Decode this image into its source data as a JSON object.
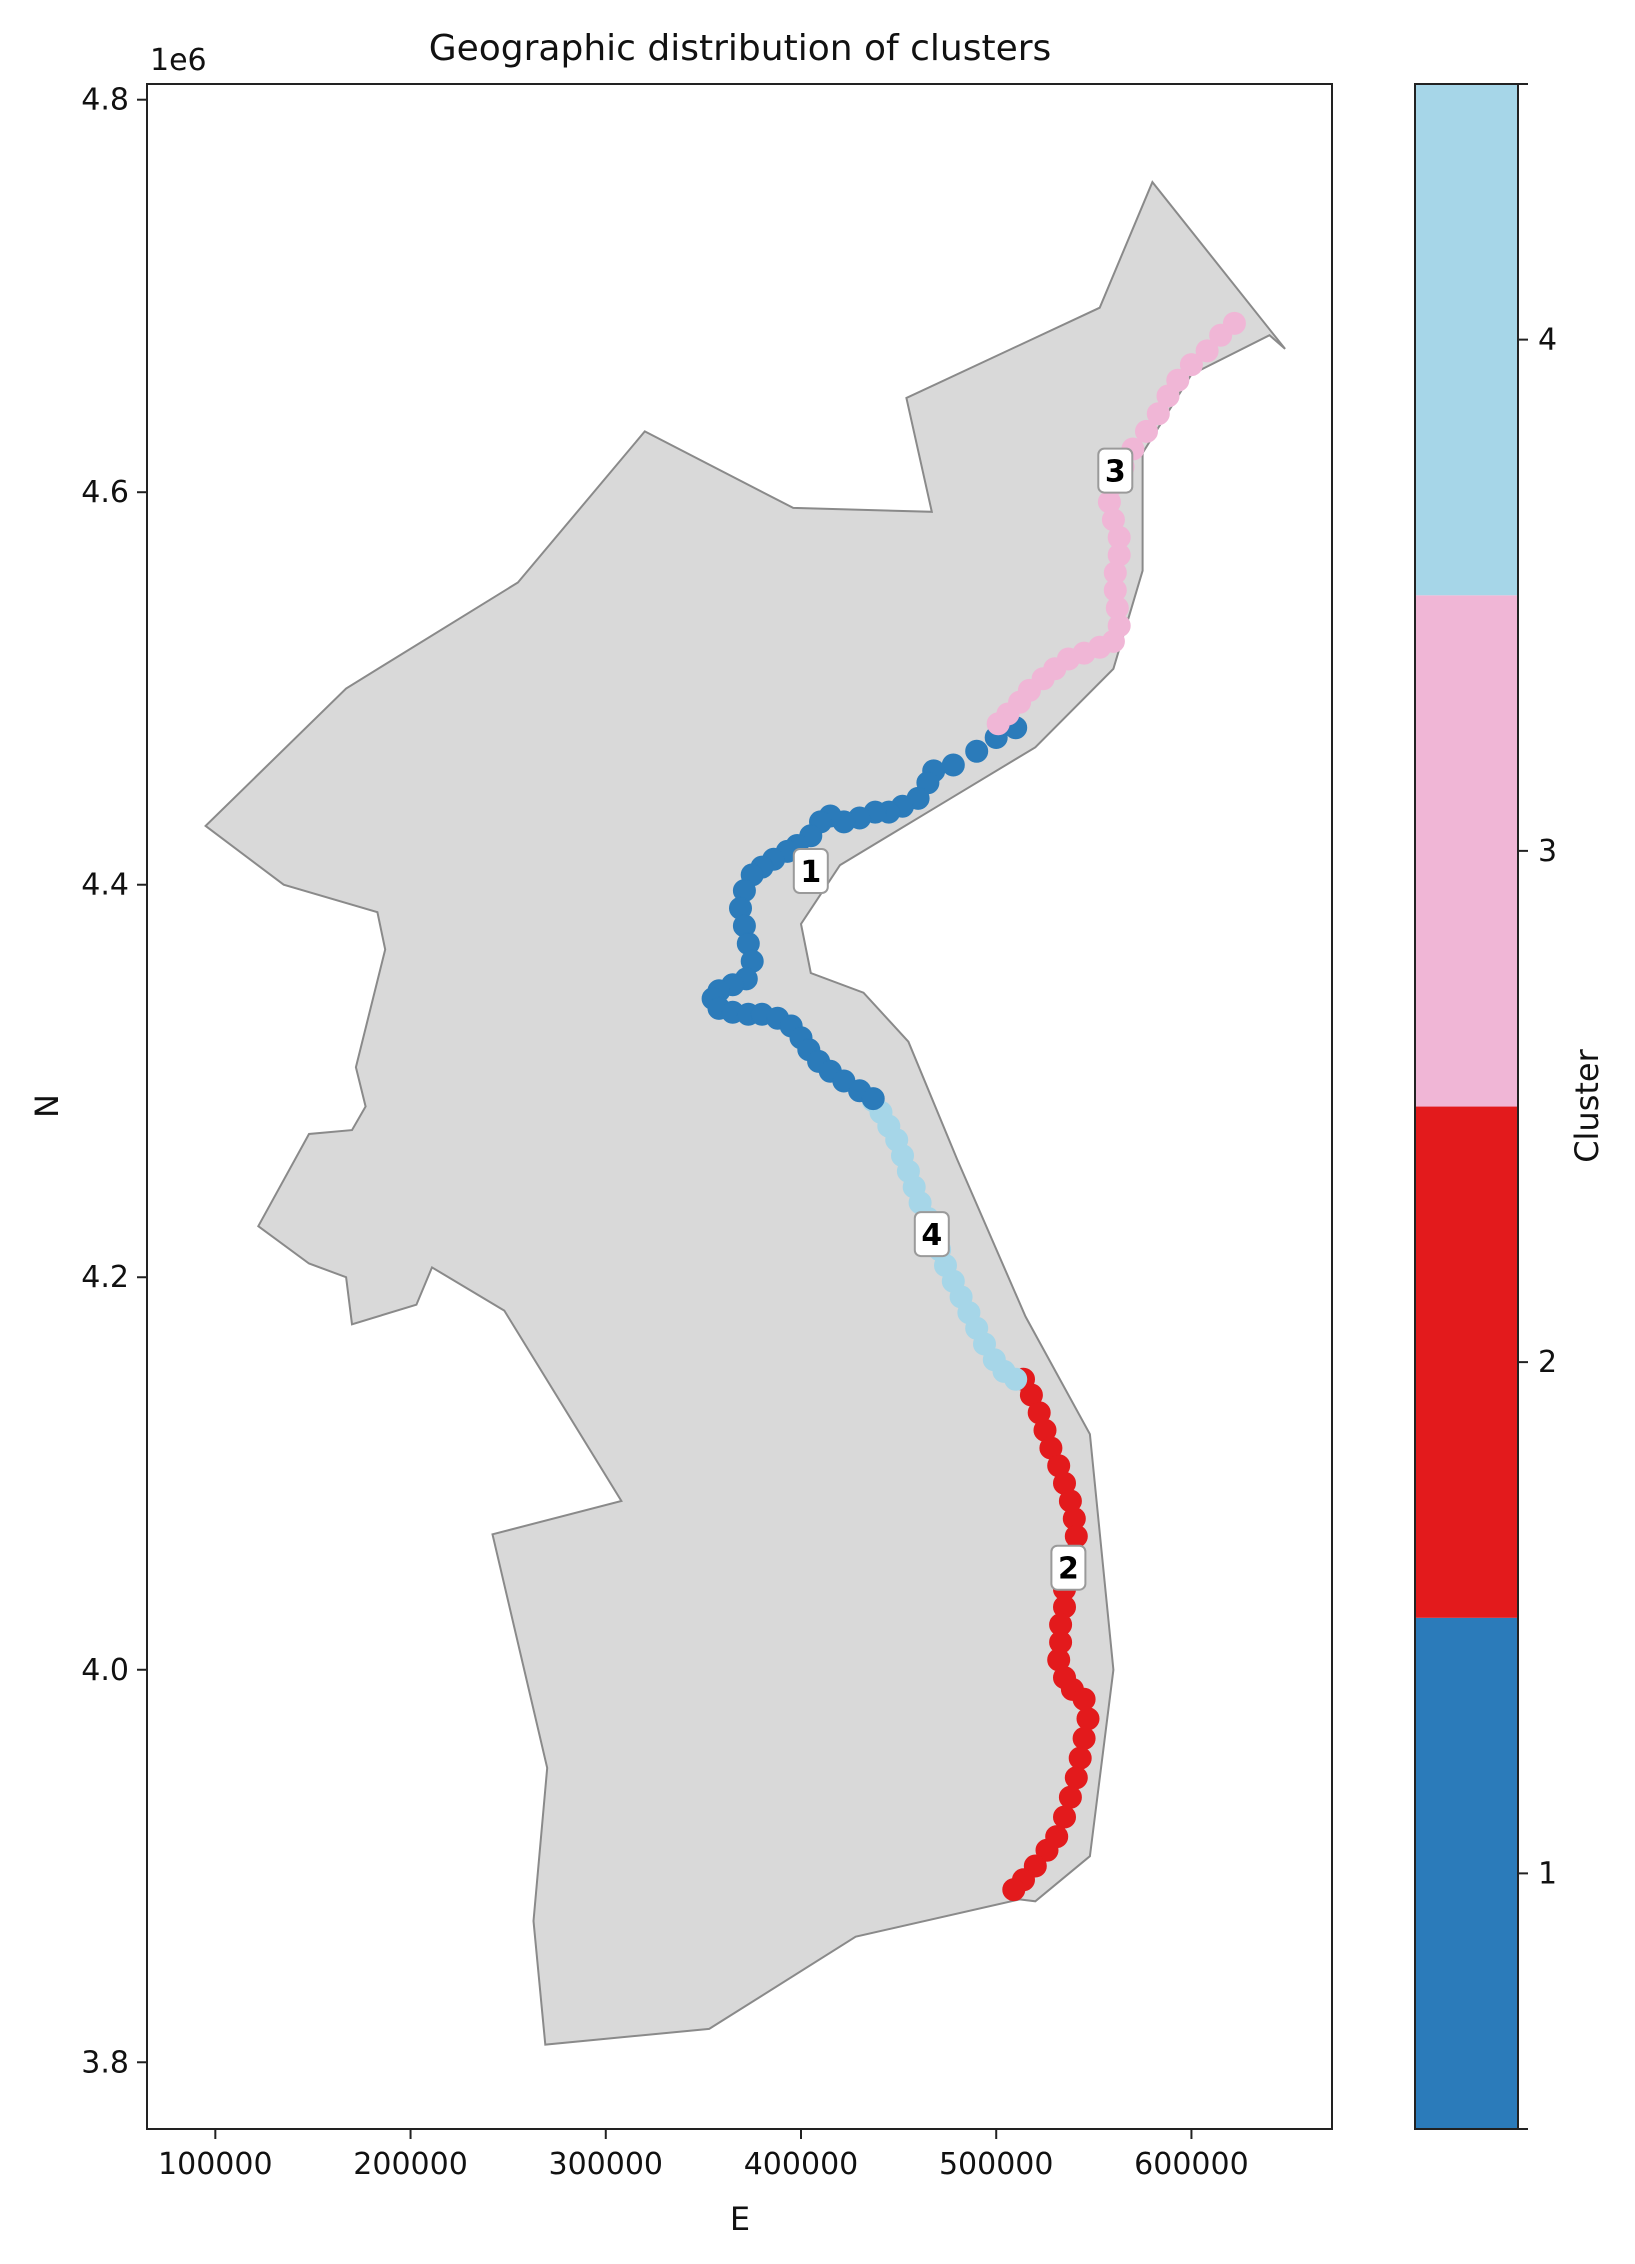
{
  "chart_data": {
    "type": "scatter",
    "title": "Geographic distribution of clusters",
    "xlabel": "E",
    "ylabel": "N",
    "y_offset_text": "1e6",
    "xlim": [
      65000,
      672000
    ],
    "ylim": [
      3766000,
      4808000
    ],
    "x_ticks": [
      100000,
      200000,
      300000,
      400000,
      500000,
      600000
    ],
    "x_tick_labels": [
      "100000",
      "200000",
      "300000",
      "400000",
      "500000",
      "600000"
    ],
    "y_ticks": [
      3800000,
      4000000,
      4200000,
      4400000,
      4600000,
      4800000
    ],
    "y_tick_labels": [
      "3.8",
      "4.0",
      "4.2",
      "4.4",
      "4.6",
      "4.8"
    ],
    "grid": false,
    "region_color": "#d9d9d9",
    "region_outline": [
      [
        95000,
        4430000
      ],
      [
        135000,
        4400000
      ],
      [
        183000,
        4386000
      ],
      [
        187000,
        4367000
      ],
      [
        172000,
        4307000
      ],
      [
        177000,
        4287000
      ],
      [
        170000,
        4275000
      ],
      [
        148000,
        4273000
      ],
      [
        122000,
        4226000
      ],
      [
        148000,
        4207000
      ],
      [
        167000,
        4200000
      ],
      [
        170000,
        4176000
      ],
      [
        203000,
        4186000
      ],
      [
        211000,
        4205000
      ],
      [
        248000,
        4183000
      ],
      [
        308000,
        4086000
      ],
      [
        242000,
        4069000
      ],
      [
        270000,
        3950000
      ],
      [
        263000,
        3872000
      ],
      [
        269000,
        3809000
      ],
      [
        353000,
        3817000
      ],
      [
        428000,
        3864000
      ],
      [
        512000,
        3883000
      ],
      [
        520000,
        3882000
      ],
      [
        548000,
        3905000
      ],
      [
        560000,
        4000000
      ],
      [
        548000,
        4120000
      ],
      [
        515000,
        4180000
      ],
      [
        480000,
        4260000
      ],
      [
        455000,
        4320000
      ],
      [
        432000,
        4345000
      ],
      [
        405000,
        4355000
      ],
      [
        400000,
        4380000
      ],
      [
        420000,
        4410000
      ],
      [
        470000,
        4440000
      ],
      [
        520000,
        4470000
      ],
      [
        560000,
        4510000
      ],
      [
        575000,
        4560000
      ],
      [
        575000,
        4620000
      ],
      [
        600000,
        4660000
      ],
      [
        640000,
        4680000
      ],
      [
        648000,
        4673000
      ],
      [
        580000,
        4758000
      ],
      [
        553000,
        4694000
      ],
      [
        454000,
        4648000
      ],
      [
        467000,
        4590000
      ],
      [
        396000,
        4592000
      ],
      [
        320000,
        4631000
      ],
      [
        255000,
        4554000
      ],
      [
        167000,
        4500000
      ]
    ],
    "series": [
      {
        "cluster": 1,
        "color": "#2b7bba",
        "label_point": [
          405000,
          4407000
        ],
        "points": [
          [
            510000,
            4480000
          ],
          [
            500000,
            4475000
          ],
          [
            490000,
            4468000
          ],
          [
            478000,
            4461000
          ],
          [
            468000,
            4458000
          ],
          [
            465000,
            4452000
          ],
          [
            460000,
            4444000
          ],
          [
            452000,
            4440000
          ],
          [
            445000,
            4437000
          ],
          [
            438000,
            4437000
          ],
          [
            430000,
            4434000
          ],
          [
            422000,
            4432000
          ],
          [
            415000,
            4435000
          ],
          [
            410000,
            4432000
          ],
          [
            405000,
            4425000
          ],
          [
            398000,
            4420000
          ],
          [
            393000,
            4417000
          ],
          [
            386000,
            4413000
          ],
          [
            380000,
            4409000
          ],
          [
            375000,
            4405000
          ],
          [
            371000,
            4397000
          ],
          [
            369000,
            4388000
          ],
          [
            371000,
            4379000
          ],
          [
            373000,
            4370000
          ],
          [
            375000,
            4361000
          ],
          [
            372000,
            4352000
          ],
          [
            365000,
            4349000
          ],
          [
            358000,
            4346000
          ],
          [
            355000,
            4342000
          ],
          [
            358000,
            4337000
          ],
          [
            365000,
            4335000
          ],
          [
            373000,
            4334000
          ],
          [
            380000,
            4334000
          ],
          [
            388000,
            4332000
          ],
          [
            395000,
            4328000
          ],
          [
            400000,
            4322000
          ],
          [
            404000,
            4316000
          ],
          [
            409000,
            4310000
          ],
          [
            415000,
            4305000
          ],
          [
            422000,
            4300000
          ],
          [
            430000,
            4295000
          ],
          [
            437000,
            4291000
          ]
        ]
      },
      {
        "cluster": 2,
        "color": "#e31a1c",
        "label_point": [
          537000,
          4052000
        ],
        "points": [
          [
            514000,
            4148000
          ],
          [
            518000,
            4140000
          ],
          [
            522000,
            4131000
          ],
          [
            525000,
            4122000
          ],
          [
            528000,
            4113000
          ],
          [
            532000,
            4104000
          ],
          [
            535000,
            4095000
          ],
          [
            538000,
            4086000
          ],
          [
            540000,
            4077000
          ],
          [
            541000,
            4068000
          ],
          [
            540000,
            4059000
          ],
          [
            537000,
            4050000
          ],
          [
            535000,
            4041000
          ],
          [
            535000,
            4032000
          ],
          [
            533000,
            4023000
          ],
          [
            533000,
            4014000
          ],
          [
            532000,
            4005000
          ],
          [
            535000,
            3996000
          ],
          [
            539000,
            3990000
          ],
          [
            545000,
            3985000
          ],
          [
            547000,
            3975000
          ],
          [
            545000,
            3965000
          ],
          [
            543000,
            3955000
          ],
          [
            541000,
            3945000
          ],
          [
            538000,
            3935000
          ],
          [
            535000,
            3925000
          ],
          [
            531000,
            3915000
          ],
          [
            526000,
            3908000
          ],
          [
            520000,
            3900000
          ],
          [
            514000,
            3893000
          ],
          [
            509000,
            3888000
          ]
        ]
      },
      {
        "cluster": 3,
        "color": "#f0b6d6",
        "label_point": [
          561000,
          4611000
        ],
        "points": [
          [
            622000,
            4686000
          ],
          [
            615000,
            4680000
          ],
          [
            608000,
            4672000
          ],
          [
            600000,
            4665000
          ],
          [
            593000,
            4657000
          ],
          [
            588000,
            4649000
          ],
          [
            583000,
            4640000
          ],
          [
            577000,
            4631000
          ],
          [
            570000,
            4622000
          ],
          [
            565000,
            4613000
          ],
          [
            560000,
            4604000
          ],
          [
            558000,
            4595000
          ],
          [
            560000,
            4586000
          ],
          [
            563000,
            4577000
          ],
          [
            563000,
            4568000
          ],
          [
            561000,
            4559000
          ],
          [
            561000,
            4550000
          ],
          [
            562000,
            4541000
          ],
          [
            563000,
            4532000
          ],
          [
            560000,
            4524000
          ],
          [
            553000,
            4521000
          ],
          [
            545000,
            4518000
          ],
          [
            537000,
            4515000
          ],
          [
            530000,
            4510000
          ],
          [
            524000,
            4505000
          ],
          [
            517000,
            4499000
          ],
          [
            512000,
            4493000
          ],
          [
            506000,
            4487000
          ],
          [
            501000,
            4482000
          ]
        ]
      },
      {
        "cluster": 4,
        "color": "#a6d6e8",
        "label_point": [
          467000,
          4222000
        ],
        "points": [
          [
            437000,
            4290000
          ],
          [
            441000,
            4284000
          ],
          [
            445000,
            4277000
          ],
          [
            449000,
            4270000
          ],
          [
            452000,
            4262000
          ],
          [
            455000,
            4254000
          ],
          [
            458000,
            4246000
          ],
          [
            461000,
            4238000
          ],
          [
            465000,
            4230000
          ],
          [
            468000,
            4222000
          ],
          [
            471000,
            4214000
          ],
          [
            474000,
            4206000
          ],
          [
            478000,
            4198000
          ],
          [
            482000,
            4190000
          ],
          [
            486000,
            4182000
          ],
          [
            490000,
            4174000
          ],
          [
            494000,
            4166000
          ],
          [
            499000,
            4158000
          ],
          [
            504000,
            4152000
          ],
          [
            510000,
            4148000
          ]
        ]
      }
    ],
    "colorbar": {
      "label": "Cluster",
      "ticks": [
        1,
        2,
        3,
        4
      ],
      "tick_labels": [
        "1",
        "2",
        "3",
        "4"
      ],
      "colors": [
        "#2b7bba",
        "#e31a1c",
        "#f0b6d6",
        "#a6d6e8"
      ],
      "range": [
        0.5,
        4.5
      ]
    }
  }
}
